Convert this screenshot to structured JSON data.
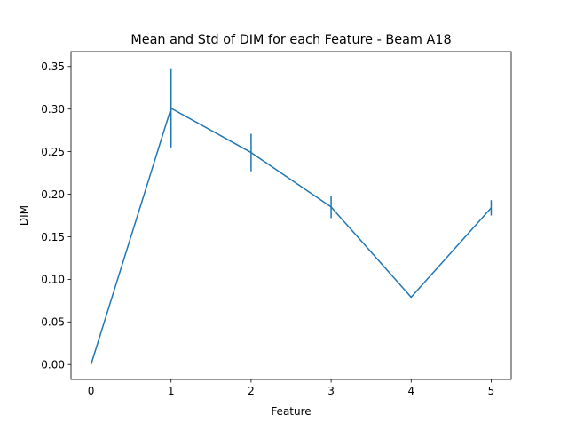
{
  "chart_data": {
    "type": "line",
    "title": "Mean and Std of DIM for each Feature - Beam A18",
    "xlabel": "Feature",
    "ylabel": "DIM",
    "x": [
      0,
      1,
      2,
      3,
      4,
      5
    ],
    "series": [
      {
        "values": [
          0.0,
          0.301,
          0.249,
          0.185,
          0.079,
          0.184
        ],
        "std": [
          0.0,
          0.046,
          0.022,
          0.013,
          0.0,
          0.009
        ],
        "color": "#1f77b4"
      }
    ],
    "xlim": [
      -0.25,
      5.25
    ],
    "ylim": [
      -0.0175,
      0.3675
    ],
    "xticks": [
      "0",
      "1",
      "2",
      "3",
      "4",
      "5"
    ],
    "yticks": [
      "0.00",
      "0.05",
      "0.10",
      "0.15",
      "0.20",
      "0.25",
      "0.30",
      "0.35"
    ],
    "grid": false,
    "legend": "none"
  }
}
